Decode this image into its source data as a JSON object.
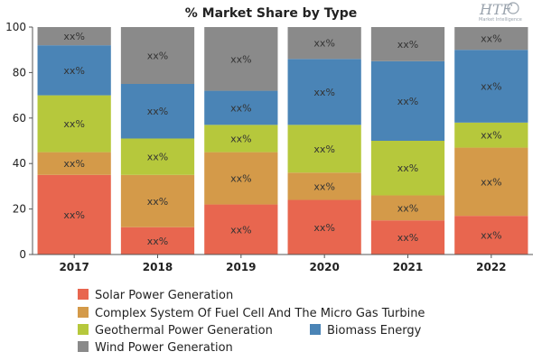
{
  "chart_data": {
    "type": "bar",
    "stacked": true,
    "title": "% Market Share by Type",
    "categories": [
      "2017",
      "2018",
      "2019",
      "2020",
      "2021",
      "2022"
    ],
    "ylim": [
      0,
      100
    ],
    "yticks": [
      "0",
      "20",
      "40",
      "60",
      "80",
      "100"
    ],
    "grid": false,
    "legend_position": "bottom",
    "segment_label": "xx%",
    "series": [
      {
        "name": "Solar Power Generation",
        "color": "#e8664f",
        "values": [
          35,
          12,
          22,
          24,
          15,
          17
        ]
      },
      {
        "name": "Complex System Of Fuel Cell And The Micro Gas Turbine",
        "color": "#d49a49",
        "values": [
          10,
          23,
          23,
          12,
          11,
          30
        ]
      },
      {
        "name": "Geothermal Power Generation",
        "color": "#b6c83c",
        "values": [
          25,
          16,
          12,
          21,
          24,
          11
        ]
      },
      {
        "name": "Biomass Energy",
        "color": "#4a84b6",
        "values": [
          22,
          24,
          15,
          29,
          35,
          32
        ]
      },
      {
        "name": "Wind Power Generation",
        "color": "#8a8a8a",
        "values": [
          8,
          25,
          28,
          14,
          15,
          10
        ]
      }
    ]
  },
  "logo": {
    "mark": "HTF",
    "tagline": "Market Intelligence"
  }
}
